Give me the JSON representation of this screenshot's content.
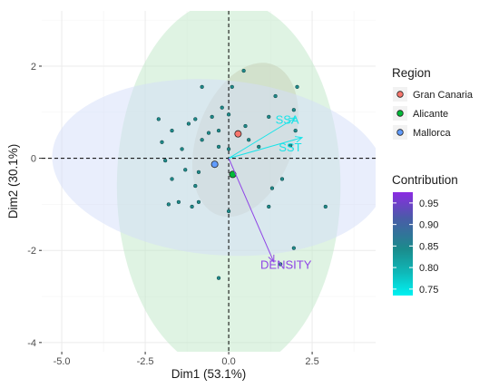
{
  "chart_data": {
    "type": "scatter",
    "title": "",
    "xlabel": "Dim1 (53.1%)",
    "ylabel": "Dim2 (30.1%)",
    "xlim": [
      -5.6,
      4.4
    ],
    "ylim": [
      -4.2,
      3.2
    ],
    "x_ticks": [
      -5.0,
      -2.5,
      0.0,
      2.5
    ],
    "y_ticks": [
      -4,
      -2,
      0,
      2
    ],
    "x_tick_labels": [
      "-5.0",
      "-2.5",
      "0.0",
      "2.5"
    ],
    "y_tick_labels": [
      "-4",
      "-2",
      "0",
      "2"
    ],
    "grid": true,
    "legend": {
      "position": "right",
      "region_title": "Region",
      "regions": [
        {
          "name": "Gran Canaria",
          "color": "#F8766D"
        },
        {
          "name": "Alicante",
          "color": "#00BA38"
        },
        {
          "name": "Mallorca",
          "color": "#619CFF"
        }
      ],
      "contribution_title": "Contribution",
      "contribution_ticks": [
        "0.95",
        "0.90",
        "0.85",
        "0.80",
        "0.75"
      ],
      "contribution_values": [
        0.95,
        0.9,
        0.85,
        0.8,
        0.75
      ],
      "contribution_range": [
        0.735,
        0.975
      ]
    },
    "ellipses": [
      {
        "region": "Gran Canaria",
        "cx": 0.5,
        "cy": 0.4,
        "rx": 2.4,
        "ry": 1.05,
        "angle": -70,
        "fill": "#c9b5a3"
      },
      {
        "region": "Alicante",
        "cx": 0.0,
        "cy": -0.6,
        "rx": 3.35,
        "ry": 4.05,
        "angle": 0,
        "fill": "#bfe8c7"
      },
      {
        "region": "Mallorca",
        "cx": -0.3,
        "cy": -0.2,
        "rx": 5.0,
        "ry": 1.9,
        "angle": 5,
        "fill": "#d3defa"
      }
    ],
    "region_means": [
      {
        "region": "Gran Canaria",
        "x": 0.28,
        "y": 0.53,
        "color": "#F8766D"
      },
      {
        "region": "Alicante",
        "x": 0.12,
        "y": -0.35,
        "color": "#00BA38"
      },
      {
        "region": "Mallorca",
        "x": -0.42,
        "y": -0.13,
        "color": "#619CFF"
      }
    ],
    "points": [
      {
        "x": 2.05,
        "y": 1.55
      },
      {
        "x": 1.95,
        "y": 1.05
      },
      {
        "x": 2.0,
        "y": 0.6
      },
      {
        "x": 1.85,
        "y": 0.28
      },
      {
        "x": 1.2,
        "y": 0.9
      },
      {
        "x": 1.4,
        "y": 1.35
      },
      {
        "x": -0.8,
        "y": 1.55
      },
      {
        "x": 0.1,
        "y": 1.55
      },
      {
        "x": -0.2,
        "y": 1.1
      },
      {
        "x": 0.0,
        "y": 0.95
      },
      {
        "x": -0.5,
        "y": 0.9
      },
      {
        "x": -1.0,
        "y": 0.85
      },
      {
        "x": -1.2,
        "y": 0.75
      },
      {
        "x": -0.3,
        "y": 0.6
      },
      {
        "x": -0.6,
        "y": 0.55
      },
      {
        "x": 0.5,
        "y": 0.7
      },
      {
        "x": 0.6,
        "y": 0.4
      },
      {
        "x": 0.9,
        "y": 0.25
      },
      {
        "x": 0.0,
        "y": 0.2
      },
      {
        "x": -0.3,
        "y": 0.25
      },
      {
        "x": -0.8,
        "y": 0.4
      },
      {
        "x": -1.7,
        "y": 0.6
      },
      {
        "x": -2.0,
        "y": 0.35
      },
      {
        "x": -1.4,
        "y": 0.2
      },
      {
        "x": -1.9,
        "y": -0.05
      },
      {
        "x": -1.3,
        "y": -0.25
      },
      {
        "x": -0.9,
        "y": -0.3
      },
      {
        "x": -1.7,
        "y": -0.45
      },
      {
        "x": -1.0,
        "y": -0.6
      },
      {
        "x": -1.5,
        "y": -0.95
      },
      {
        "x": -1.1,
        "y": -1.05
      },
      {
        "x": -0.9,
        "y": -0.95
      },
      {
        "x": -1.8,
        "y": -1.0
      },
      {
        "x": 0.0,
        "y": -1.15
      },
      {
        "x": 1.6,
        "y": -0.45
      },
      {
        "x": 1.3,
        "y": -0.65
      },
      {
        "x": 1.2,
        "y": -1.05
      },
      {
        "x": 2.9,
        "y": -1.05
      },
      {
        "x": 1.95,
        "y": -1.95
      },
      {
        "x": 1.55,
        "y": -2.3
      },
      {
        "x": -0.3,
        "y": -2.6
      },
      {
        "x": -2.1,
        "y": 0.85
      },
      {
        "x": 0.45,
        "y": 1.9
      }
    ],
    "variables": [
      {
        "name": "SSA",
        "x": 2.0,
        "y": 0.88,
        "color": "#19e3e8"
      },
      {
        "name": "SST",
        "x": 2.2,
        "y": 0.45,
        "color": "#19e3e8"
      },
      {
        "name": "DENSITY",
        "x": 1.35,
        "y": -2.25,
        "color": "#8f44e6"
      }
    ],
    "variable_labels": [
      {
        "name": "SSA",
        "x": 1.4,
        "y": 0.75
      },
      {
        "name": "SST",
        "x": 1.5,
        "y": 0.15
      },
      {
        "name": "DENSITY",
        "x": 0.95,
        "y": -2.4
      }
    ]
  }
}
